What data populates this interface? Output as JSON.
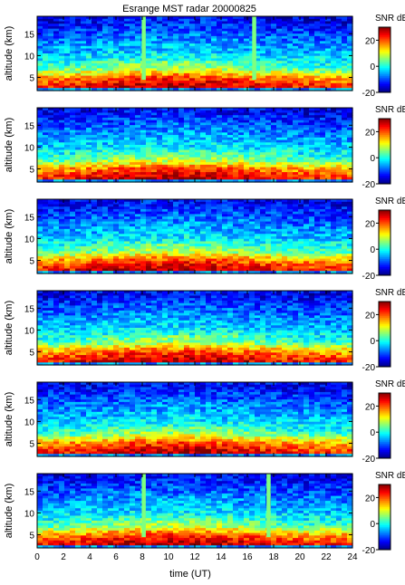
{
  "figure": {
    "title": "Esrange MST radar 20000825",
    "xlabel": "time (UT)",
    "ylabel": "altitude (km)",
    "colorbar_label": "SNR dB"
  },
  "chart_data": {
    "type": "heatmap",
    "title": "Esrange MST radar 20000825",
    "xlabel": "time (UT)",
    "ylabel": "altitude (km)",
    "xlim": [
      0,
      24
    ],
    "ylim": [
      2,
      19
    ],
    "x_ticks": [
      0,
      2,
      4,
      6,
      8,
      10,
      12,
      14,
      16,
      18,
      20,
      22,
      24
    ],
    "y_ticks": [
      5,
      10,
      15
    ],
    "colorbar": {
      "label": "SNR dB",
      "range": [
        -20,
        30
      ],
      "ticks": [
        -20,
        0,
        20
      ],
      "colormap": "jet"
    },
    "grid": false,
    "panels": [
      {
        "gaps_hours": [
          8.1,
          16.5
        ],
        "gap_color": "#7fff7f"
      },
      {
        "gaps_hours": [],
        "gap_color": "#7fff7f"
      },
      {
        "gaps_hours": [],
        "gap_color": "#7fff7f"
      },
      {
        "gaps_hours": [],
        "gap_color": "#7fff7f"
      },
      {
        "gaps_hours": [],
        "gap_color": "#7fff7f"
      },
      {
        "gaps_hours": [
          8.1,
          17.6
        ],
        "gap_color": "#7fff7f"
      }
    ],
    "snr_profile": [
      {
        "altitude_km": 3,
        "snr_db": 25
      },
      {
        "altitude_km": 5,
        "snr_db": 18
      },
      {
        "altitude_km": 7,
        "snr_db": 5
      },
      {
        "altitude_km": 10,
        "snr_db": -3
      },
      {
        "altitude_km": 14,
        "snr_db": -8
      },
      {
        "altitude_km": 18,
        "snr_db": -14
      }
    ]
  }
}
